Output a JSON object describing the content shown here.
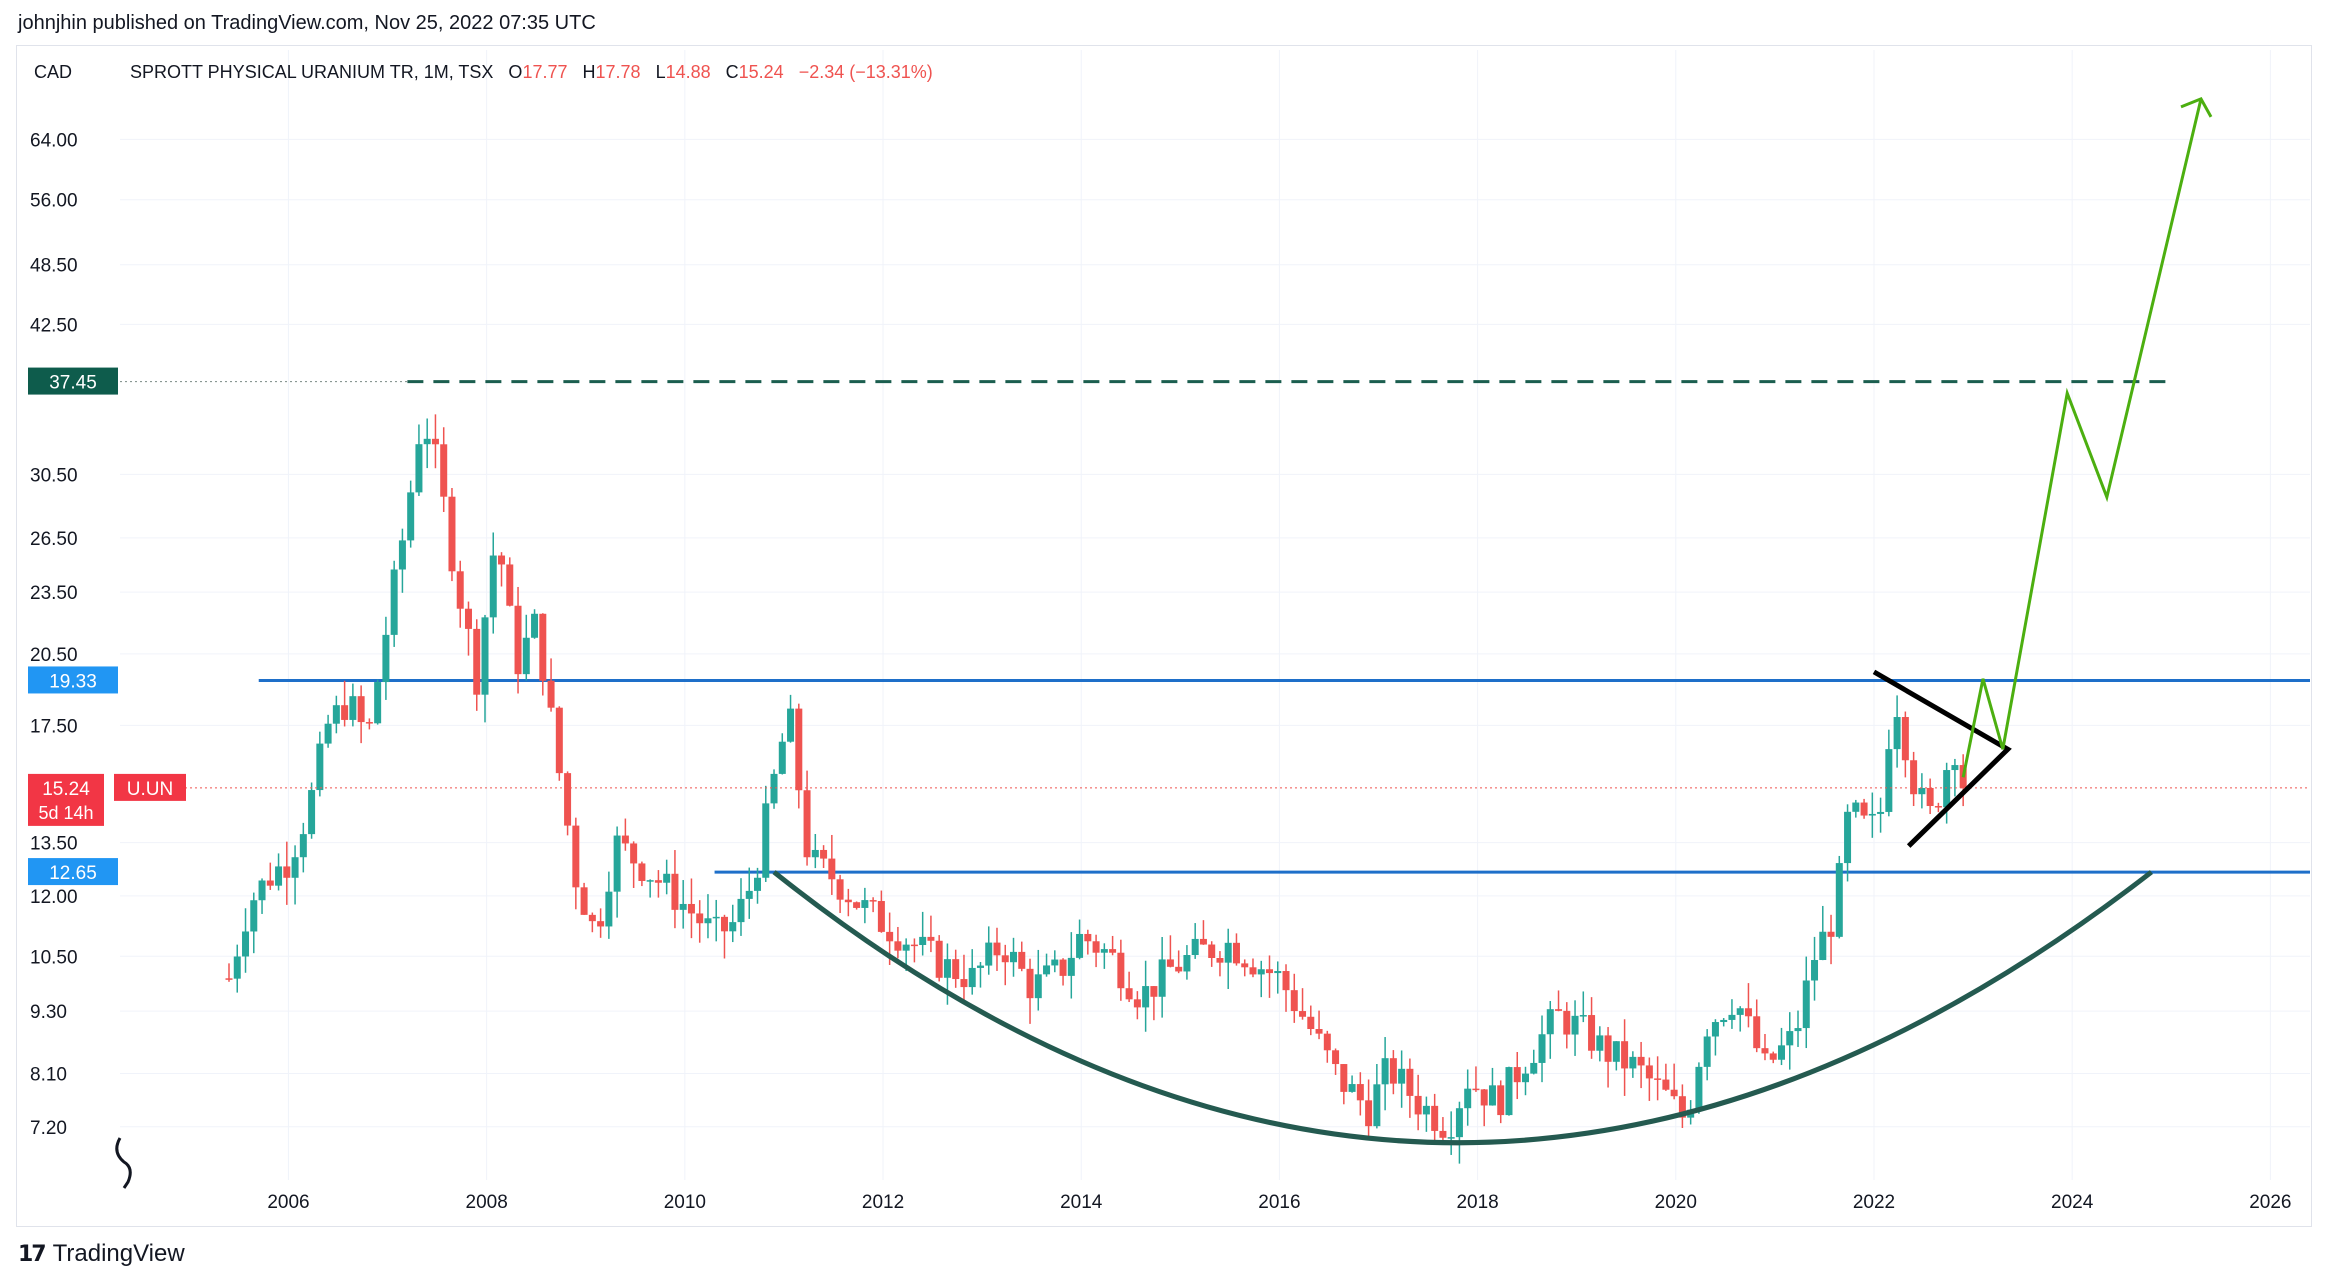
{
  "header": {
    "published": "johnjhin published on TradingView.com, Nov 25, 2022 07:35 UTC"
  },
  "legend": {
    "currency": "CAD",
    "symbol": "SPROTT PHYSICAL URANIUM TR, 1M, TSX",
    "o_label": "O",
    "o_value": "17.77",
    "h_label": "H",
    "h_value": "17.78",
    "l_label": "L",
    "l_value": "14.88",
    "c_label": "C",
    "c_value": "15.24",
    "change": "−2.34 (−13.31%)"
  },
  "footer": {
    "brand": "TradingView",
    "logo_mark": "17"
  },
  "colors": {
    "up": "#26a69a",
    "down": "#ef5350",
    "blue": "#2962ff",
    "hline": "#1e6fc9",
    "dark_green": "#1b5e4f",
    "arrow": "#4caf10",
    "curve": "#245a50"
  },
  "chart_data": {
    "type": "candlestick",
    "interval": "1M",
    "scale": "log",
    "ylim": [
      6.4,
      78
    ],
    "xlim": [
      2004.3,
      2026.4
    ],
    "y_ticks": [
      "64.00",
      "56.00",
      "48.50",
      "42.50",
      "30.50",
      "26.50",
      "23.50",
      "20.50",
      "17.50",
      "13.50",
      "12.00",
      "10.50",
      "9.30",
      "8.10",
      "7.20"
    ],
    "x_ticks": [
      "2006",
      "2008",
      "2010",
      "2012",
      "2014",
      "2016",
      "2018",
      "2020",
      "2022",
      "2024",
      "2026"
    ],
    "price_labels": [
      {
        "text": "37.45",
        "value": 37.45,
        "kind": "dark"
      },
      {
        "text": "19.33",
        "value": 19.33,
        "kind": "blue"
      },
      {
        "text": "15.24",
        "value": 15.24,
        "kind": "red",
        "extra": "5d 14h",
        "tag": "U.UN"
      },
      {
        "text": "12.65",
        "value": 12.65,
        "kind": "blue"
      }
    ],
    "horizontal_lines": [
      {
        "value": 37.45,
        "x_start": 2007.2,
        "style": "dashed",
        "label": "37.45"
      },
      {
        "value": 19.33,
        "x_start": 2005.7,
        "style": "solid",
        "label": "19.33"
      },
      {
        "value": 12.65,
        "x_start": 2010.3,
        "style": "solid",
        "label": "12.65"
      }
    ],
    "price_points": [
      [
        2005.4,
        10.0
      ],
      [
        2005.6,
        11.8
      ],
      [
        2005.8,
        12.5
      ],
      [
        2006.0,
        13.0
      ],
      [
        2006.2,
        14.5
      ],
      [
        2006.4,
        17.5
      ],
      [
        2006.6,
        18.5
      ],
      [
        2006.8,
        17.0
      ],
      [
        2007.0,
        22.0
      ],
      [
        2007.2,
        28.0
      ],
      [
        2007.35,
        35.0
      ],
      [
        2007.5,
        31.0
      ],
      [
        2007.7,
        24.0
      ],
      [
        2007.9,
        19.5
      ],
      [
        2008.1,
        27.0
      ],
      [
        2008.3,
        20.0
      ],
      [
        2008.5,
        22.0
      ],
      [
        2008.7,
        16.5
      ],
      [
        2008.9,
        12.5
      ],
      [
        2009.1,
        11.0
      ],
      [
        2009.3,
        13.5
      ],
      [
        2009.5,
        13.0
      ],
      [
        2009.7,
        12.5
      ],
      [
        2009.9,
        12.0
      ],
      [
        2010.1,
        11.5
      ],
      [
        2010.3,
        11.0
      ],
      [
        2010.5,
        11.3
      ],
      [
        2010.7,
        12.5
      ],
      [
        2010.9,
        15.5
      ],
      [
        2011.05,
        18.0
      ],
      [
        2011.25,
        13.0
      ],
      [
        2011.5,
        12.5
      ],
      [
        2011.75,
        11.8
      ],
      [
        2012.0,
        11.3
      ],
      [
        2012.3,
        10.8
      ],
      [
        2012.6,
        10.3
      ],
      [
        2012.9,
        10.0
      ],
      [
        2013.2,
        10.8
      ],
      [
        2013.5,
        9.8
      ],
      [
        2013.8,
        10.2
      ],
      [
        2014.0,
        11.0
      ],
      [
        2014.3,
        10.5
      ],
      [
        2014.6,
        9.6
      ],
      [
        2014.9,
        10.2
      ],
      [
        2015.2,
        10.6
      ],
      [
        2015.5,
        10.8
      ],
      [
        2015.8,
        10.3
      ],
      [
        2016.0,
        10.0
      ],
      [
        2016.3,
        9.0
      ],
      [
        2016.6,
        8.0
      ],
      [
        2016.9,
        7.5
      ],
      [
        2017.1,
        8.2
      ],
      [
        2017.4,
        7.6
      ],
      [
        2017.7,
        7.2
      ],
      [
        2017.9,
        8.0
      ],
      [
        2018.2,
        7.6
      ],
      [
        2018.5,
        8.4
      ],
      [
        2018.8,
        9.2
      ],
      [
        2019.0,
        9.0
      ],
      [
        2019.3,
        8.5
      ],
      [
        2019.6,
        8.2
      ],
      [
        2019.9,
        7.7
      ],
      [
        2020.1,
        7.3
      ],
      [
        2020.3,
        9.0
      ],
      [
        2020.6,
        9.6
      ],
      [
        2020.9,
        8.2
      ],
      [
        2021.2,
        8.8
      ],
      [
        2021.4,
        10.5
      ],
      [
        2021.6,
        11.5
      ],
      [
        2021.75,
        14.5
      ],
      [
        2021.9,
        14.0
      ],
      [
        2022.05,
        14.0
      ],
      [
        2022.2,
        19.0
      ],
      [
        2022.4,
        15.5
      ],
      [
        2022.55,
        14.2
      ],
      [
        2022.7,
        15.5
      ],
      [
        2022.8,
        17.0
      ],
      [
        2022.9,
        15.24
      ]
    ],
    "wedge": [
      [
        2022.0,
        19.7
      ],
      [
        2023.35,
        16.6
      ],
      [
        2022.35,
        13.4
      ]
    ],
    "projection": [
      [
        2022.9,
        15.6
      ],
      [
        2023.1,
        19.4
      ],
      [
        2023.3,
        16.6
      ],
      [
        2023.95,
        36.5
      ],
      [
        2024.35,
        29.0
      ],
      [
        2025.3,
        70.0
      ]
    ],
    "arc": {
      "from": [
        2010.9,
        12.65
      ],
      "bottom": [
        2017.8,
        6.95
      ],
      "to": [
        2024.8,
        12.65
      ]
    }
  }
}
